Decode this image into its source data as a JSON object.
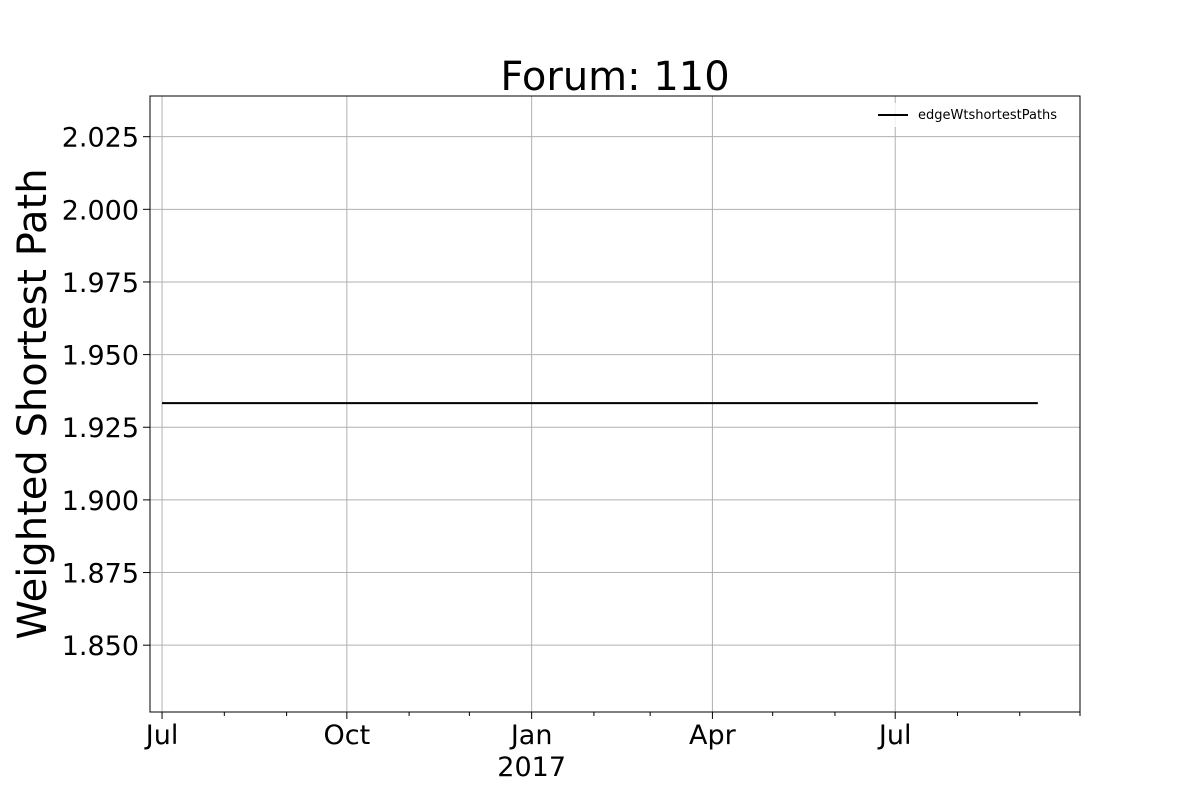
{
  "chart_data": {
    "type": "line",
    "title": "Forum: 110",
    "ylabel": "Weighted Shortest Path",
    "xlabel": "",
    "x_range": [
      "2016-06-25",
      "2017-10-01"
    ],
    "ylim": [
      1.827,
      2.039
    ],
    "x_ticks": [
      {
        "date": "2016-07-01",
        "label": "Jul",
        "sublabel": ""
      },
      {
        "date": "2016-10-01",
        "label": "Oct",
        "sublabel": ""
      },
      {
        "date": "2017-01-01",
        "label": "Jan",
        "sublabel": "2017"
      },
      {
        "date": "2017-04-01",
        "label": "Apr",
        "sublabel": ""
      },
      {
        "date": "2017-07-01",
        "label": "Jul",
        "sublabel": ""
      }
    ],
    "x_minor_ticks": [
      "2016-08-01",
      "2016-09-01",
      "2016-11-01",
      "2016-12-01",
      "2017-02-01",
      "2017-03-01",
      "2017-05-01",
      "2017-06-01",
      "2017-08-01",
      "2017-09-01",
      "2017-10-01"
    ],
    "y_ticks": [
      1.85,
      1.875,
      1.9,
      1.925,
      1.95,
      1.975,
      2.0,
      2.025
    ],
    "y_tick_labels": [
      "1.850",
      "1.875",
      "1.900",
      "1.925",
      "1.950",
      "1.975",
      "2.000",
      "2.025"
    ],
    "grid": true,
    "legend_position": "top-right",
    "series": [
      {
        "name": "edgeWtshortestPaths",
        "color": "#000000",
        "x": [
          "2016-07-01",
          "2017-09-10"
        ],
        "y": [
          1.9333,
          1.9333
        ]
      }
    ]
  }
}
